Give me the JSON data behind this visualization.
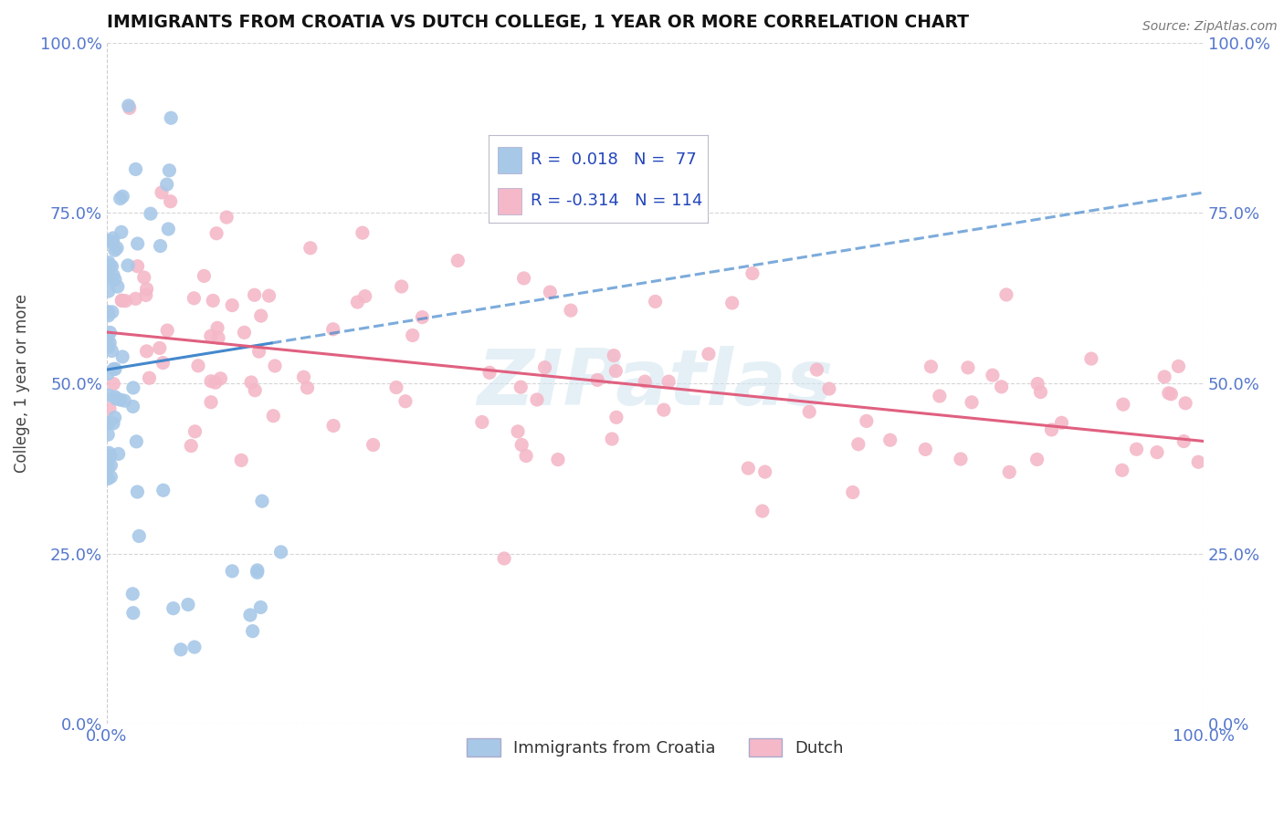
{
  "title": "IMMIGRANTS FROM CROATIA VS DUTCH COLLEGE, 1 YEAR OR MORE CORRELATION CHART",
  "source_text": "Source: ZipAtlas.com",
  "ylabel": "College, 1 year or more",
  "xlim": [
    0.0,
    1.0
  ],
  "ylim": [
    0.0,
    1.0
  ],
  "xtick_labels": [
    "0.0%",
    "100.0%"
  ],
  "ytick_labels": [
    "0.0%",
    "25.0%",
    "50.0%",
    "75.0%",
    "100.0%"
  ],
  "ytick_values": [
    0.0,
    0.25,
    0.5,
    0.75,
    1.0
  ],
  "legend_R1": "0.018",
  "legend_N1": "77",
  "legend_R2": "-0.314",
  "legend_N2": "114",
  "series1_color": "#a8c8e8",
  "series2_color": "#f4b8c8",
  "series1_label": "Immigrants from Croatia",
  "series2_label": "Dutch",
  "series1_line_color": "#4488cc",
  "series2_line_color": "#e06080",
  "watermark": "ZIPatlas",
  "background_color": "#ffffff",
  "grid_color": "#cccccc",
  "tick_color": "#5577cc",
  "legend_box_color": "#aabbcc",
  "s1_trend_start_y": 0.52,
  "s1_trend_end_y": 0.78,
  "s2_trend_start_y": 0.575,
  "s2_trend_end_y": 0.415
}
